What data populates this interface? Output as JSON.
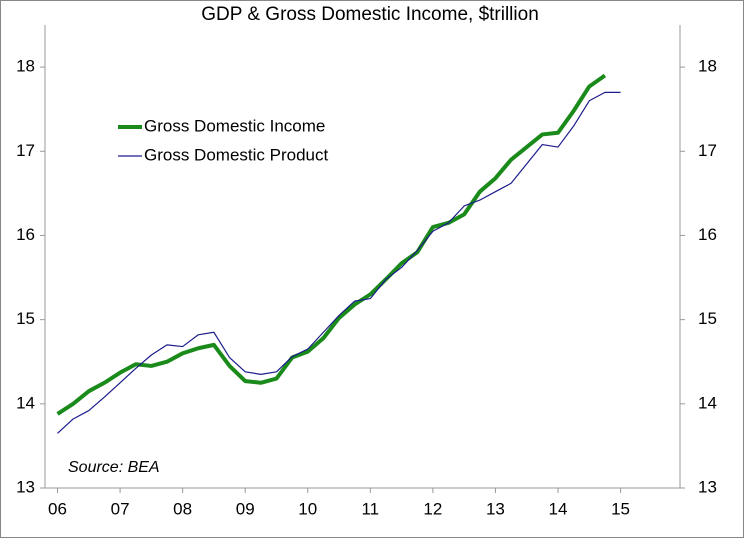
{
  "chart_data": {
    "type": "line",
    "title": "GDP & Gross Domestic Income, $trillion",
    "annotation": "Source: BEA",
    "xlim": [
      5.8,
      15.95
    ],
    "xticks": [
      {
        "value": 6,
        "label": "06"
      },
      {
        "value": 7,
        "label": "07"
      },
      {
        "value": 8,
        "label": "08"
      },
      {
        "value": 9,
        "label": "09"
      },
      10,
      11,
      12,
      13,
      14,
      15
    ],
    "ylim": [
      13,
      18.5
    ],
    "yticks": [
      13,
      14,
      15,
      16,
      17,
      18
    ],
    "grid": false,
    "legend": "upper left",
    "series": [
      {
        "name": "Gross Domestic Income",
        "color": "#1a8a1a",
        "x": [
          6,
          6.25,
          6.5,
          6.75,
          7,
          7.25,
          7.5,
          7.75,
          8,
          8.25,
          8.5,
          8.75,
          9,
          9.25,
          9.5,
          9.75,
          10,
          10.25,
          10.5,
          10.75,
          11,
          11.25,
          11.5,
          11.75,
          12,
          12.25,
          12.5,
          12.75,
          13,
          13.25,
          13.5,
          13.75,
          14,
          14.25,
          14.5,
          14.75
        ],
        "values": [
          13.88,
          14.0,
          14.15,
          14.25,
          14.37,
          14.47,
          14.45,
          14.5,
          14.6,
          14.66,
          14.7,
          14.45,
          14.27,
          14.25,
          14.3,
          14.55,
          14.62,
          14.78,
          15.02,
          15.18,
          15.3,
          15.48,
          15.67,
          15.8,
          16.1,
          16.15,
          16.25,
          16.52,
          16.68,
          16.9,
          17.05,
          17.2,
          17.22,
          17.48,
          17.77,
          17.9
        ]
      },
      {
        "name": "Gross Domestic Product",
        "color": "#1c1c8c",
        "x": [
          6,
          6.25,
          6.5,
          6.75,
          7,
          7.25,
          7.5,
          7.75,
          8,
          8.25,
          8.5,
          8.75,
          9,
          9.25,
          9.5,
          9.75,
          10,
          10.25,
          10.5,
          10.75,
          11,
          11.25,
          11.5,
          11.75,
          12,
          12.25,
          12.5,
          12.75,
          13,
          13.25,
          13.5,
          13.75,
          14,
          14.25,
          14.5,
          14.75,
          15
        ],
        "values": [
          13.65,
          13.82,
          13.92,
          14.08,
          14.25,
          14.42,
          14.58,
          14.7,
          14.68,
          14.82,
          14.85,
          14.55,
          14.38,
          14.35,
          14.38,
          14.56,
          14.65,
          14.85,
          15.05,
          15.22,
          15.25,
          15.48,
          15.62,
          15.82,
          16.05,
          16.15,
          16.35,
          16.42,
          16.52,
          16.62,
          16.85,
          17.08,
          17.05,
          17.3,
          17.6,
          17.7,
          17.7
        ]
      }
    ]
  }
}
